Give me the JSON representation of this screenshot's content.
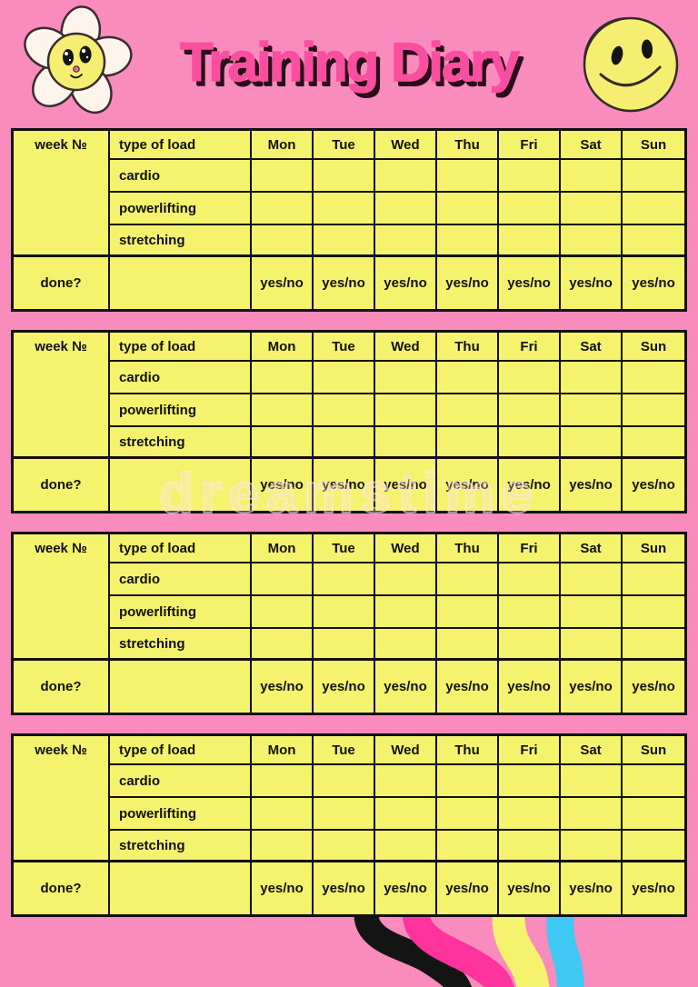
{
  "header": {
    "title": "Training Diary",
    "flower_icon": "daisy-flower-with-smiley-face",
    "smiley_icon": "peeling-smiley-face-sticker"
  },
  "watermark": {
    "text": "dreamstime"
  },
  "colors": {
    "background": "#F98CBD",
    "table_fill": "#F5F36E",
    "border": "#111111",
    "title": "#FA4FA0",
    "title_shadow": "#2A0D18",
    "stripe_black": "#141414",
    "stripe_magenta": "#FF339B",
    "stripe_yellow": "#F5F36E",
    "stripe_cyan": "#3FC9F2",
    "watermark_tint": "#FFE4F0"
  },
  "tables": [
    {
      "week_label": "week №",
      "type_label": "type of load",
      "days": [
        "Mon",
        "Tue",
        "Wed",
        "Thu",
        "Fri",
        "Sat",
        "Sun"
      ],
      "activities": [
        "cardio",
        "powerlifting",
        "stretching"
      ],
      "done_label": "done?",
      "done_value": "yes/no"
    },
    {
      "week_label": "week №",
      "type_label": "type of load",
      "days": [
        "Mon",
        "Tue",
        "Wed",
        "Thu",
        "Fri",
        "Sat",
        "Sun"
      ],
      "activities": [
        "cardio",
        "powerlifting",
        "stretching"
      ],
      "done_label": "done?",
      "done_value": "yes/no"
    },
    {
      "week_label": "week №",
      "type_label": "type of load",
      "days": [
        "Mon",
        "Tue",
        "Wed",
        "Thu",
        "Fri",
        "Sat",
        "Sun"
      ],
      "activities": [
        "cardio",
        "powerlifting",
        "stretching"
      ],
      "done_label": "done?",
      "done_value": "yes/no"
    },
    {
      "week_label": "week №",
      "type_label": "type of load",
      "days": [
        "Mon",
        "Tue",
        "Wed",
        "Thu",
        "Fri",
        "Sat",
        "Sun"
      ],
      "activities": [
        "cardio",
        "powerlifting",
        "stretching"
      ],
      "done_label": "done?",
      "done_value": "yes/no"
    }
  ]
}
